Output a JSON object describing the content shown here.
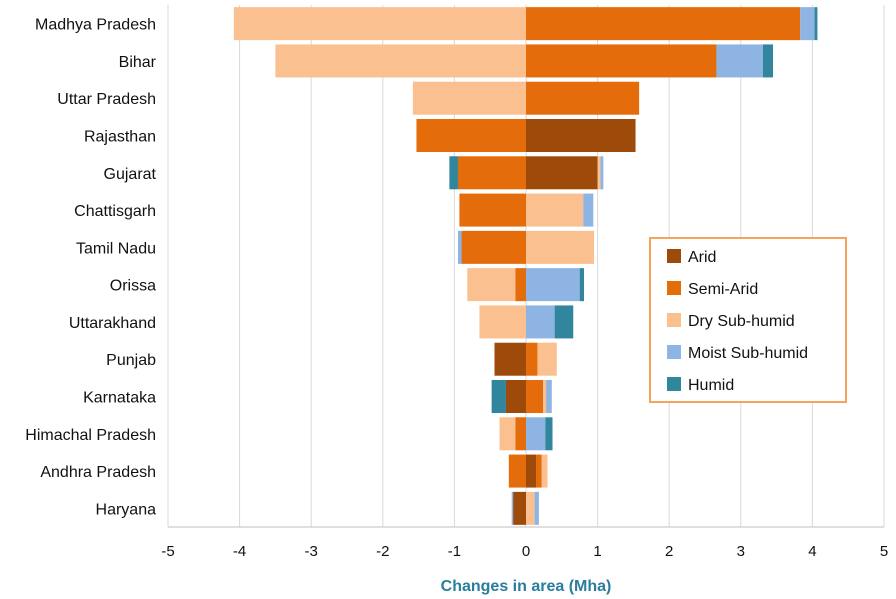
{
  "chart_data": {
    "type": "bar",
    "orientation": "horizontal-stacked-diverging",
    "xlabel": "Changes in area (Mha)",
    "ylabel": "",
    "title": "",
    "xlim": [
      -5,
      5
    ],
    "xticks": [
      -5,
      -4,
      -3,
      -2,
      -1,
      0,
      1,
      2,
      3,
      4,
      5
    ],
    "grid": "vertical",
    "legend_position": "right",
    "categories": [
      "Madhya Pradesh",
      "Bihar",
      "Uttar Pradesh",
      "Rajasthan",
      "Gujarat",
      "Chattisgarh",
      "Tamil Nadu",
      "Orissa",
      "Uttarakhand",
      "Punjab",
      "Karnataka",
      "Himachal Pradesh",
      "Andhra Pradesh",
      "Haryana"
    ],
    "series": [
      {
        "name": "Arid",
        "color": "#9e4a0b",
        "negative": [
          0,
          0,
          0,
          0,
          0,
          0,
          0,
          0,
          0,
          0.44,
          0.28,
          0,
          0,
          0.18
        ],
        "positive": [
          0,
          0,
          0,
          1.53,
          1.0,
          0,
          0,
          0,
          0,
          0,
          0,
          0,
          0.14,
          0
        ]
      },
      {
        "name": "Semi-Arid",
        "color": "#e46c0a",
        "negative": [
          0,
          0,
          0,
          1.53,
          0.95,
          0.93,
          0.9,
          0.15,
          0,
          0,
          0,
          0.15,
          0.24,
          0
        ],
        "positive": [
          3.83,
          2.66,
          1.58,
          0,
          0,
          0,
          0,
          0,
          0,
          0.16,
          0.24,
          0,
          0.08,
          0
        ]
      },
      {
        "name": "Dry Sub-humid",
        "color": "#fac090",
        "negative": [
          4.08,
          3.5,
          1.58,
          0,
          0,
          0,
          0,
          0.67,
          0.65,
          0,
          0,
          0.22,
          0,
          0
        ],
        "positive": [
          0,
          0,
          0,
          0,
          0.04,
          0.8,
          0.95,
          0,
          0,
          0.27,
          0.04,
          0,
          0.08,
          0.12
        ]
      },
      {
        "name": "Moist Sub-humid",
        "color": "#8eb4e3",
        "negative": [
          0,
          0,
          0,
          0,
          0,
          0,
          0.05,
          0,
          0,
          0,
          0,
          0,
          0,
          0.02
        ],
        "positive": [
          0.2,
          0.65,
          0,
          0,
          0.04,
          0.14,
          0,
          0.75,
          0.4,
          0,
          0.08,
          0.27,
          0,
          0.06
        ]
      },
      {
        "name": "Humid",
        "color": "#31859c",
        "negative": [
          0,
          0,
          0,
          0,
          0.12,
          0,
          0,
          0,
          0,
          0,
          0.2,
          0,
          0,
          0
        ],
        "positive": [
          0.04,
          0.14,
          0,
          0,
          0,
          0,
          0,
          0.06,
          0.26,
          0,
          0,
          0.1,
          0,
          0
        ]
      }
    ]
  }
}
